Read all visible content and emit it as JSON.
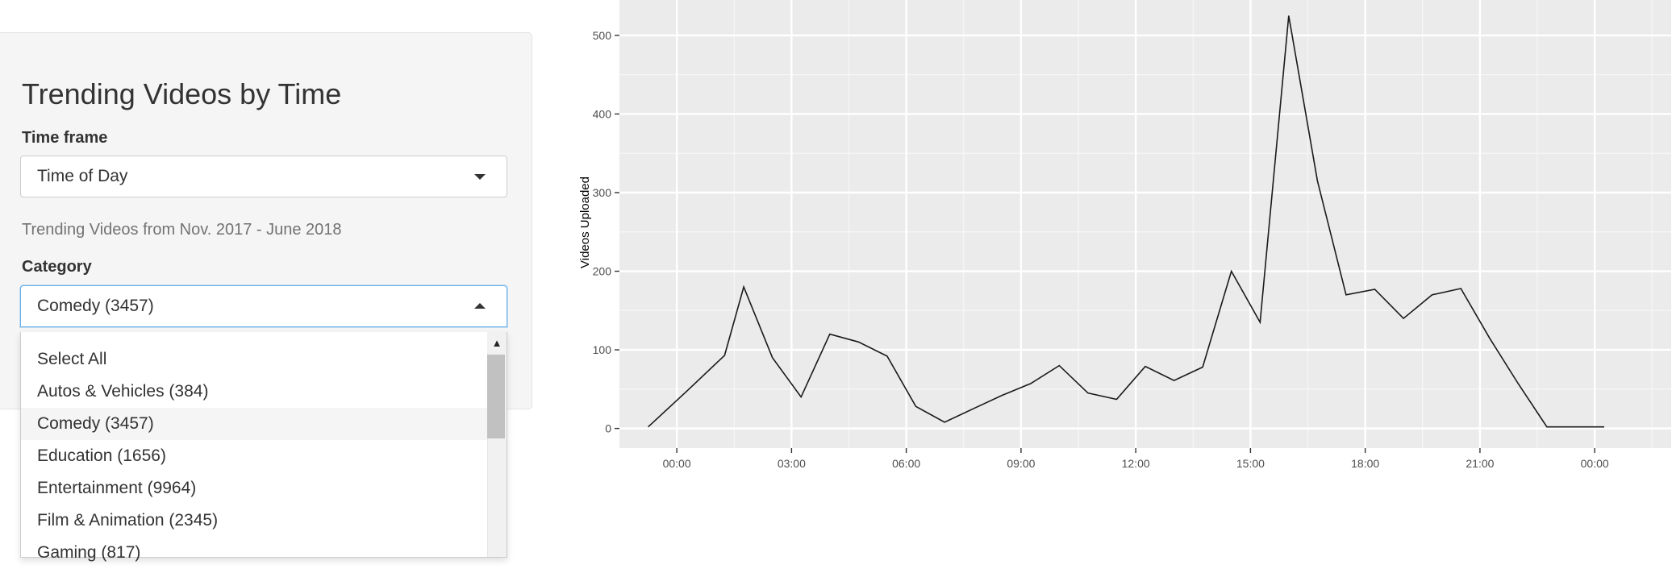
{
  "sidebar": {
    "title": "Trending Videos by Time",
    "timeframe_label": "Time frame",
    "timeframe_value": "Time of Day",
    "help_text": "Trending Videos from Nov. 2017 - June 2018",
    "category_label": "Category",
    "category_value": "Comedy (3457)",
    "options": [
      "Select All",
      "Autos & Vehicles (384)",
      "Comedy (3457)",
      "Education (1656)",
      "Entertainment (9964)",
      "Film & Animation (2345)",
      "Gaming (817)"
    ],
    "active_option_index": 2
  },
  "chart_data": {
    "type": "line",
    "ylabel": "Videos Uploaded",
    "xlabel": "",
    "x_ticks": [
      "00:00",
      "03:00",
      "06:00",
      "09:00",
      "12:00",
      "15:00",
      "18:00",
      "21:00",
      "00:00"
    ],
    "y_ticks": [
      0,
      100,
      200,
      300,
      400,
      500
    ],
    "xlim": [
      -1.5,
      26
    ],
    "ylim": [
      -25,
      545
    ],
    "grid": true,
    "series": [
      {
        "x": [
          -0.75,
          0.25,
          1.25,
          1.75,
          2.5,
          3.25,
          4.0,
          4.75,
          5.5,
          6.25,
          7.0,
          7.75,
          8.5,
          9.25,
          10.0,
          10.75,
          11.5,
          12.25,
          13.0,
          13.75,
          14.5,
          15.25,
          16.0,
          16.75,
          17.5,
          18.25,
          19.0,
          19.75,
          20.5,
          21.25,
          22.0,
          22.75,
          23.5,
          24.25
        ],
        "y": [
          2,
          47,
          93,
          180,
          90,
          40,
          120,
          110,
          92,
          28,
          8,
          25,
          42,
          57,
          80,
          45,
          37,
          79,
          61,
          78,
          200,
          135,
          525,
          315,
          170,
          177,
          140,
          170,
          178,
          115,
          57,
          2,
          2,
          2
        ]
      }
    ]
  }
}
